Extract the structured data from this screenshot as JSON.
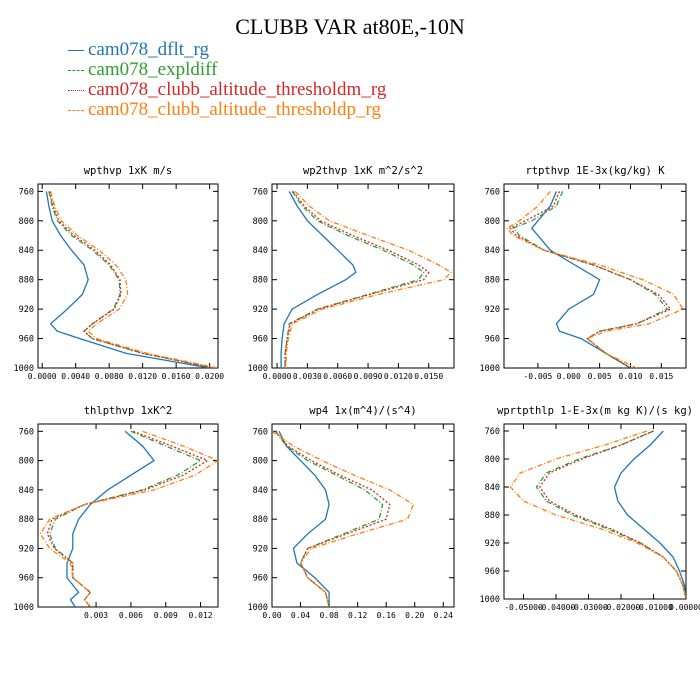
{
  "title": "CLUBB VAR at80E,-10N",
  "legend": [
    {
      "name": "cam078_dflt_rg",
      "color": "#1f77b4",
      "dash": "solid"
    },
    {
      "name": "cam078_expldiff",
      "color": "#2ca02c",
      "dash": "dashdot"
    },
    {
      "name": "cam078_clubb_altitude_thresholdm_rg",
      "color": "#d62728",
      "dash": "dotted"
    },
    {
      "name": "cam078_clubb_altitude_thresholdp_rg",
      "color": "#ff7f0e",
      "dash": "dashdot"
    }
  ],
  "chart_data": [
    {
      "type": "line",
      "title": "wpthvp  1xK m/s",
      "ylim": [
        1000,
        750
      ],
      "xlim": [
        -0.0005,
        0.021
      ],
      "yticks": [
        760,
        800,
        840,
        880,
        920,
        960,
        1000
      ],
      "xticks": [
        0.0,
        0.004,
        0.008,
        0.012,
        0.016,
        0.02
      ],
      "xticklabels": [
        "0.0000",
        "0.0040",
        "0.0080",
        "0.0120",
        "0.0160",
        "0.0200"
      ],
      "y": [
        760,
        780,
        800,
        820,
        840,
        860,
        880,
        900,
        920,
        940,
        950,
        960,
        980,
        1000
      ],
      "series": [
        {
          "values": [
            0.0005,
            0.0008,
            0.0012,
            0.0022,
            0.0035,
            0.005,
            0.0055,
            0.0048,
            0.003,
            0.001,
            0.0018,
            0.0045,
            0.01,
            0.02
          ]
        },
        {
          "values": [
            0.0008,
            0.0012,
            0.0018,
            0.0035,
            0.006,
            0.008,
            0.0092,
            0.0093,
            0.0085,
            0.006,
            0.005,
            0.006,
            0.012,
            0.0205
          ]
        },
        {
          "values": [
            0.0009,
            0.0013,
            0.002,
            0.0038,
            0.0063,
            0.0082,
            0.0093,
            0.0094,
            0.0086,
            0.006,
            0.005,
            0.006,
            0.012,
            0.0205
          ]
        },
        {
          "values": [
            0.001,
            0.0015,
            0.0023,
            0.0042,
            0.0068,
            0.0088,
            0.01,
            0.0102,
            0.0092,
            0.0065,
            0.0055,
            0.0065,
            0.0125,
            0.021
          ]
        }
      ]
    },
    {
      "type": "line",
      "title": "wp2thvp  1xK m^2/s^2",
      "ylim": [
        1000,
        750
      ],
      "xlim": [
        -0.0005,
        0.0175
      ],
      "yticks": [
        760,
        800,
        840,
        880,
        920,
        960,
        1000
      ],
      "xticks": [
        0.0,
        0.003,
        0.006,
        0.009,
        0.012,
        0.015
      ],
      "xticklabels": [
        "0.0000",
        "0.0030",
        "0.0060",
        "0.0090",
        "0.0120",
        "0.0150"
      ],
      "y": [
        760,
        780,
        800,
        820,
        840,
        860,
        870,
        880,
        900,
        920,
        940,
        960,
        980,
        1000
      ],
      "series": [
        {
          "values": [
            0.0012,
            0.002,
            0.003,
            0.0045,
            0.006,
            0.0075,
            0.0078,
            0.0068,
            0.004,
            0.0015,
            0.0007,
            0.0005,
            0.0004,
            0.0004
          ]
        },
        {
          "values": [
            0.0015,
            0.0025,
            0.004,
            0.007,
            0.0105,
            0.0135,
            0.0145,
            0.014,
            0.009,
            0.004,
            0.0012,
            0.001,
            0.0008,
            0.0008
          ]
        },
        {
          "values": [
            0.0016,
            0.0027,
            0.0043,
            0.0075,
            0.011,
            0.014,
            0.015,
            0.0145,
            0.0092,
            0.0041,
            0.0013,
            0.001,
            0.0008,
            0.0008
          ]
        },
        {
          "values": [
            0.0018,
            0.0032,
            0.0052,
            0.009,
            0.013,
            0.016,
            0.0172,
            0.0165,
            0.01,
            0.0045,
            0.0015,
            0.0011,
            0.0009,
            0.0009
          ]
        }
      ]
    },
    {
      "type": "line",
      "title": "rtpthvp  1E-3x(kg/kg) K",
      "ylim": [
        1000,
        750
      ],
      "xlim": [
        -0.0105,
        0.019
      ],
      "yticks": [
        760,
        800,
        840,
        880,
        920,
        960,
        1000
      ],
      "xticks": [
        -0.005,
        0.0,
        0.005,
        0.01,
        0.015
      ],
      "xticklabels": [
        "-0.005",
        "0.000",
        "0.005",
        "0.010",
        "0.015"
      ],
      "y": [
        760,
        780,
        800,
        810,
        820,
        840,
        860,
        880,
        900,
        920,
        940,
        950,
        960,
        980,
        1000
      ],
      "series": [
        {
          "values": [
            -0.002,
            -0.003,
            -0.005,
            -0.006,
            -0.005,
            -0.003,
            0.001,
            0.005,
            0.004,
            0.0,
            -0.002,
            -0.0015,
            0.002,
            0.006,
            0.01
          ]
        },
        {
          "values": [
            -0.001,
            -0.002,
            -0.006,
            -0.009,
            -0.008,
            -0.004,
            0.004,
            0.01,
            0.014,
            0.016,
            0.011,
            0.005,
            0.003,
            0.006,
            0.01
          ]
        },
        {
          "values": [
            -0.0015,
            -0.0025,
            -0.007,
            -0.0095,
            -0.0085,
            -0.004,
            0.004,
            0.01,
            0.0145,
            0.0165,
            0.011,
            0.005,
            0.003,
            0.006,
            0.01
          ]
        },
        {
          "values": [
            -0.003,
            -0.005,
            -0.008,
            -0.01,
            -0.009,
            -0.004,
            0.005,
            0.012,
            0.017,
            0.0185,
            0.013,
            0.006,
            0.003,
            0.006,
            0.011
          ]
        }
      ]
    },
    {
      "type": "line",
      "title": "thlpthvp  1xK^2",
      "ylim": [
        1000,
        750
      ],
      "xlim": [
        -0.002,
        0.0135
      ],
      "yticks": [
        760,
        800,
        840,
        880,
        920,
        960,
        1000
      ],
      "xticks": [
        0.003,
        0.006,
        0.009,
        0.012
      ],
      "xticklabels": [
        "0.003",
        "0.006",
        "0.009",
        "0.012"
      ],
      "y": [
        760,
        780,
        800,
        820,
        840,
        860,
        880,
        900,
        920,
        940,
        960,
        980,
        990,
        1000
      ],
      "series": [
        {
          "values": [
            0.0055,
            0.007,
            0.008,
            0.006,
            0.004,
            0.0025,
            0.0015,
            0.001,
            0.001,
            0.0005,
            0.0005,
            0.0015,
            0.0008,
            0.0012
          ]
        },
        {
          "values": [
            0.006,
            0.009,
            0.012,
            0.01,
            0.007,
            0.002,
            -0.0005,
            -0.001,
            -0.0005,
            0.001,
            0.001,
            0.0025,
            0.002,
            0.0025
          ]
        },
        {
          "values": [
            0.0062,
            0.0095,
            0.0126,
            0.0105,
            0.0072,
            0.002,
            -0.0008,
            -0.0012,
            -0.0006,
            0.001,
            0.001,
            0.0025,
            0.002,
            0.0025
          ]
        },
        {
          "values": [
            0.007,
            0.0105,
            0.0135,
            0.0115,
            0.008,
            0.002,
            -0.001,
            -0.0018,
            -0.001,
            0.0008,
            0.001,
            0.0025,
            0.002,
            0.0025
          ]
        }
      ]
    },
    {
      "type": "line",
      "title": "wp4  1x(m^4)/(s^4)",
      "ylim": [
        1000,
        750
      ],
      "xlim": [
        0.0,
        0.255
      ],
      "yticks": [
        760,
        800,
        840,
        880,
        920,
        960,
        1000
      ],
      "xticks": [
        0.0,
        0.04,
        0.08,
        0.12,
        0.16,
        0.2,
        0.24
      ],
      "xticklabels": [
        "0.00",
        "0.04",
        "0.08",
        "0.12",
        "0.16",
        "0.20",
        "0.24"
      ],
      "y": [
        760,
        780,
        800,
        820,
        840,
        860,
        880,
        900,
        920,
        940,
        960,
        980,
        1000
      ],
      "series": [
        {
          "values": [
            0.01,
            0.02,
            0.04,
            0.06,
            0.075,
            0.08,
            0.075,
            0.05,
            0.03,
            0.035,
            0.06,
            0.08,
            0.08
          ]
        },
        {
          "values": [
            0.005,
            0.02,
            0.05,
            0.09,
            0.13,
            0.155,
            0.15,
            0.1,
            0.05,
            0.04,
            0.05,
            0.075,
            0.08
          ]
        },
        {
          "values": [
            0.005,
            0.022,
            0.055,
            0.095,
            0.14,
            0.165,
            0.16,
            0.105,
            0.05,
            0.04,
            0.05,
            0.075,
            0.08
          ]
        },
        {
          "values": [
            0.0,
            0.03,
            0.07,
            0.115,
            0.165,
            0.198,
            0.19,
            0.12,
            0.055,
            0.04,
            0.05,
            0.075,
            0.08
          ]
        }
      ]
    },
    {
      "type": "line",
      "title": "wprtpthlp  1-E-3x(m kg K)/(s kg)",
      "ylim": [
        1000,
        750
      ],
      "xlim": [
        -0.056,
        0.0
      ],
      "yticks": [
        760,
        800,
        840,
        880,
        920,
        960,
        1000
      ],
      "xticks": [
        -0.05,
        -0.04,
        -0.03,
        -0.02,
        -0.01,
        0.0
      ],
      "xticklabels": [
        "-0.05000",
        "-0.04000",
        "-0.03000",
        "-0.02000",
        "-0.01000",
        "0.00000"
      ],
      "y": [
        760,
        780,
        800,
        820,
        840,
        860,
        880,
        900,
        920,
        940,
        960,
        980,
        1000
      ],
      "series": [
        {
          "values": [
            -0.007,
            -0.011,
            -0.016,
            -0.02,
            -0.022,
            -0.021,
            -0.018,
            -0.013,
            -0.008,
            -0.004,
            -0.002,
            -0.0005,
            0.0
          ]
        },
        {
          "values": [
            -0.01,
            -0.02,
            -0.033,
            -0.043,
            -0.046,
            -0.043,
            -0.035,
            -0.024,
            -0.014,
            -0.007,
            -0.003,
            -0.001,
            0.0
          ]
        },
        {
          "values": [
            -0.01,
            -0.02,
            -0.032,
            -0.042,
            -0.045,
            -0.042,
            -0.034,
            -0.023,
            -0.014,
            -0.007,
            -0.003,
            -0.001,
            0.0
          ]
        },
        {
          "values": [
            -0.012,
            -0.025,
            -0.04,
            -0.051,
            -0.054,
            -0.05,
            -0.04,
            -0.026,
            -0.015,
            -0.007,
            -0.003,
            -0.001,
            0.0
          ]
        }
      ]
    }
  ]
}
